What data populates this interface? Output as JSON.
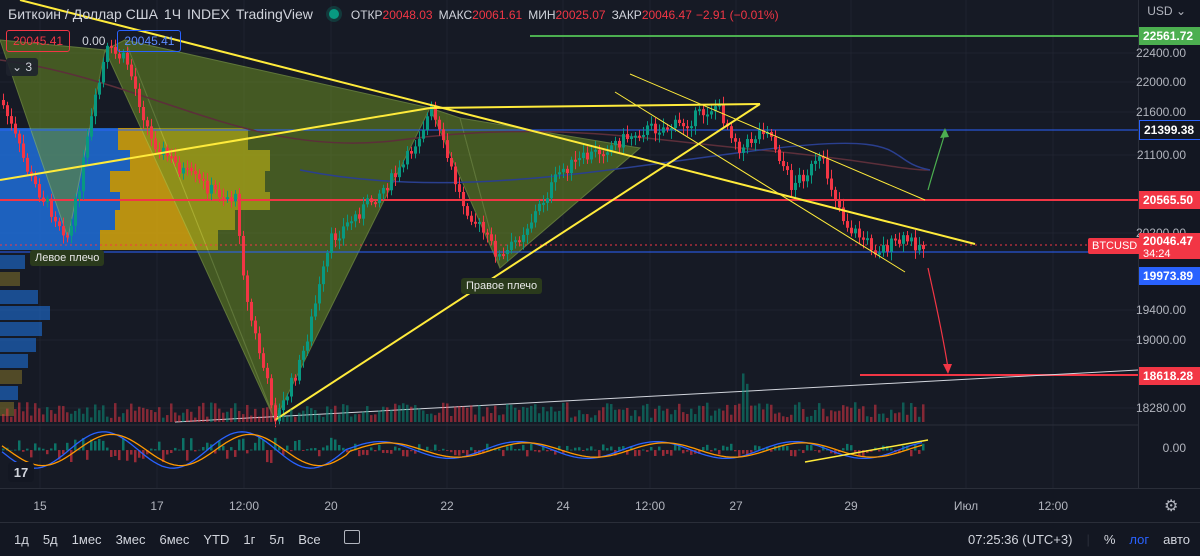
{
  "legend": {
    "title": "Биткоин / Доллар США",
    "interval": "1Ч",
    "source": "INDEX",
    "platform": "TradingView",
    "open_label": "ОТКР",
    "open": "20048.03",
    "high_label": "МАКС",
    "high": "20061.61",
    "low_label": "МИН",
    "low": "20025.07",
    "close_label": "ЗАКР",
    "close": "20046.47",
    "change": "−2.91 (−0.01%)"
  },
  "trade": {
    "sell": "20045.41",
    "spread": "0.00",
    "buy": "20045.41"
  },
  "collapse_label": "3",
  "annotations": {
    "left_shoulder": "Левое плечо",
    "right_shoulder": "Правое плечо"
  },
  "price_axis": {
    "currency": "USD",
    "ticks": [
      "22400.00",
      "22000.00",
      "21600.00",
      "21100.00",
      "20200.00",
      "19400.00",
      "19000.00",
      "18280.00",
      "0.00"
    ],
    "levels": {
      "green": "22561.72",
      "blue_top": "21399.38",
      "red_mid": "20565.50",
      "current": "20046.47",
      "countdown": "34:24",
      "blue_low": "19973.89",
      "red_low": "18618.28"
    },
    "symbol_tag": "BTCUSD"
  },
  "time_axis": [
    "15",
    "17",
    "12:00",
    "20",
    "22",
    "24",
    "12:00",
    "27",
    "29",
    "Июл",
    "12:00"
  ],
  "bottom_bar": {
    "ranges": [
      "1д",
      "5д",
      "1мес",
      "3мес",
      "6мес",
      "YTD",
      "1г",
      "5л",
      "Все"
    ],
    "clock": "07:25:36 (UTC+3)",
    "percent": "%",
    "log": "лог",
    "auto": "авто"
  },
  "colors": {
    "bull": "#089981",
    "bear": "#f23645",
    "trendline": "#ffeb3b",
    "pattern_fill": "#6b8e23",
    "volume_profile": "#2962ff",
    "volume_profile_hi": "#f0b90b",
    "support": "#2962ff",
    "resistance": "#f23645",
    "target": "#4caf50"
  },
  "icons": [
    "tradingview-logo-icon",
    "calendar-icon",
    "settings-icon"
  ]
}
